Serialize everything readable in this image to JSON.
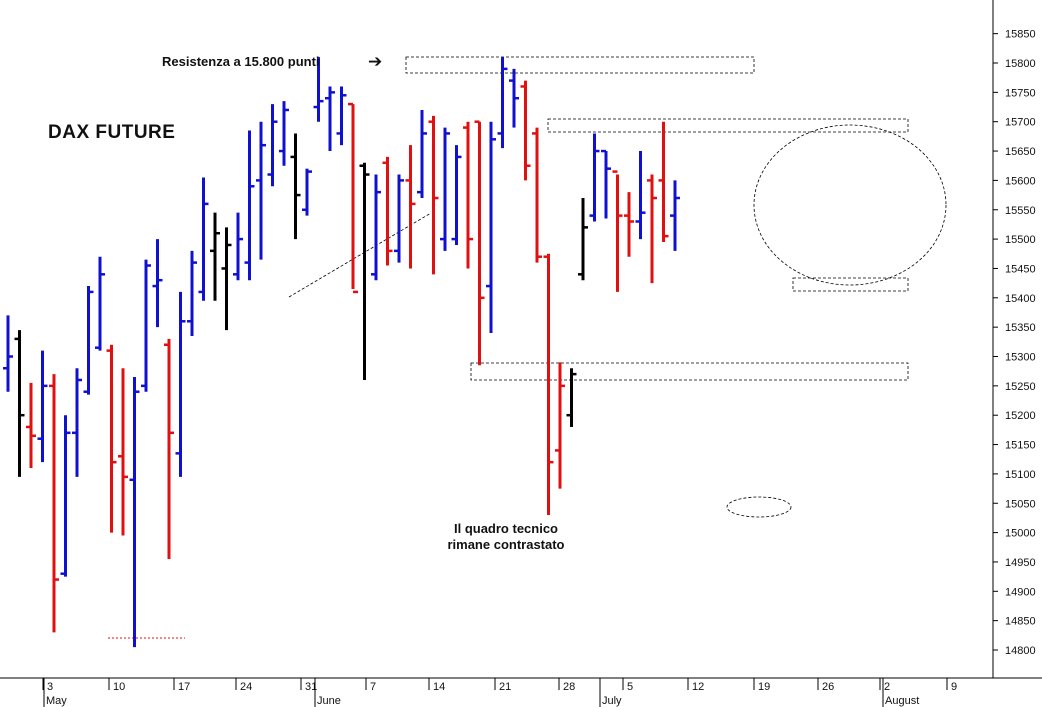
{
  "chart_data": {
    "type": "ohlc",
    "title": "DAX FUTURE",
    "annotations": {
      "resistance": "Resistenza a 15.800 punti",
      "resistance_arrow": "arrow-right",
      "comment_line1": "Il quadro tecnico",
      "comment_line2": "rimane contrastato"
    },
    "y_axis": {
      "position": "right",
      "range": [
        14750,
        15900
      ],
      "ticks": [
        14800,
        14850,
        14900,
        14950,
        15000,
        15050,
        15100,
        15150,
        15200,
        15250,
        15300,
        15350,
        15400,
        15450,
        15500,
        15550,
        15600,
        15650,
        15700,
        15750,
        15800,
        15850
      ]
    },
    "x_axis": {
      "day_ticks": [
        "3",
        "10",
        "17",
        "24",
        "31",
        "7",
        "14",
        "21",
        "28",
        "5",
        "12",
        "19",
        "26",
        "2",
        "9"
      ],
      "months": [
        "May",
        "June",
        "July",
        "August"
      ]
    },
    "colors": {
      "up": "#1010d0",
      "down": "#e01010",
      "neutral": "#000000",
      "guide": "#000000"
    },
    "bar_colors_legend": {
      "b": "up",
      "r": "down",
      "k": "neutral"
    },
    "bars": [
      {
        "c": "b",
        "h": 15370,
        "l": 15240,
        "o": 15280,
        "cl": 15300
      },
      {
        "c": "k",
        "h": 15345,
        "l": 15095,
        "o": 15330,
        "cl": 15200
      },
      {
        "c": "r",
        "h": 15255,
        "l": 15110,
        "o": 15180,
        "cl": 15165
      },
      {
        "c": "b",
        "h": 15310,
        "l": 15120,
        "o": 15160,
        "cl": 15250
      },
      {
        "c": "r",
        "h": 15270,
        "l": 14830,
        "o": 15250,
        "cl": 14920
      },
      {
        "c": "b",
        "h": 15200,
        "l": 14925,
        "o": 14930,
        "cl": 15170
      },
      {
        "c": "b",
        "h": 15280,
        "l": 15095,
        "o": 15170,
        "cl": 15260
      },
      {
        "c": "b",
        "h": 15420,
        "l": 15235,
        "o": 15240,
        "cl": 15410
      },
      {
        "c": "b",
        "h": 15470,
        "l": 15310,
        "o": 15315,
        "cl": 15440
      },
      {
        "c": "r",
        "h": 15320,
        "l": 15000,
        "o": 15310,
        "cl": 15120
      },
      {
        "c": "r",
        "h": 15280,
        "l": 14995,
        "o": 15130,
        "cl": 15095
      },
      {
        "c": "b",
        "h": 15265,
        "l": 14805,
        "o": 15090,
        "cl": 15240
      },
      {
        "c": "b",
        "h": 15465,
        "l": 15240,
        "o": 15250,
        "cl": 15455
      },
      {
        "c": "b",
        "h": 15500,
        "l": 15350,
        "o": 15420,
        "cl": 15430
      },
      {
        "c": "r",
        "h": 15330,
        "l": 14955,
        "o": 15320,
        "cl": 15170
      },
      {
        "c": "b",
        "h": 15410,
        "l": 15095,
        "o": 15135,
        "cl": 15360
      },
      {
        "c": "b",
        "h": 15480,
        "l": 15335,
        "o": 15360,
        "cl": 15460
      },
      {
        "c": "b",
        "h": 15605,
        "l": 15395,
        "o": 15410,
        "cl": 15560
      },
      {
        "c": "k",
        "h": 15545,
        "l": 15395,
        "o": 15480,
        "cl": 15510
      },
      {
        "c": "k",
        "h": 15520,
        "l": 15345,
        "o": 15450,
        "cl": 15490
      },
      {
        "c": "b",
        "h": 15545,
        "l": 15430,
        "o": 15440,
        "cl": 15500
      },
      {
        "c": "b",
        "h": 15685,
        "l": 15430,
        "o": 15460,
        "cl": 15590
      },
      {
        "c": "b",
        "h": 15700,
        "l": 15465,
        "o": 15600,
        "cl": 15660
      },
      {
        "c": "b",
        "h": 15730,
        "l": 15590,
        "o": 15610,
        "cl": 15700
      },
      {
        "c": "b",
        "h": 15735,
        "l": 15625,
        "o": 15650,
        "cl": 15720
      },
      {
        "c": "k",
        "h": 15680,
        "l": 15500,
        "o": 15640,
        "cl": 15575
      },
      {
        "c": "b",
        "h": 15620,
        "l": 15540,
        "o": 15550,
        "cl": 15615
      },
      {
        "c": "b",
        "h": 15810,
        "l": 15700,
        "o": 15725,
        "cl": 15735
      },
      {
        "c": "b",
        "h": 15760,
        "l": 15650,
        "o": 15740,
        "cl": 15750
      },
      {
        "c": "b",
        "h": 15760,
        "l": 15660,
        "o": 15680,
        "cl": 15745
      },
      {
        "c": "r",
        "h": 15730,
        "l": 15415,
        "o": 15730,
        "cl": 15410
      },
      {
        "c": "k",
        "h": 15630,
        "l": 15260,
        "o": 15625,
        "cl": 15610
      },
      {
        "c": "b",
        "h": 15610,
        "l": 15430,
        "o": 15440,
        "cl": 15580
      },
      {
        "c": "r",
        "h": 15640,
        "l": 15455,
        "o": 15630,
        "cl": 15480
      },
      {
        "c": "b",
        "h": 15610,
        "l": 15460,
        "o": 15480,
        "cl": 15600
      },
      {
        "c": "r",
        "h": 15660,
        "l": 15450,
        "o": 15600,
        "cl": 15560
      },
      {
        "c": "b",
        "h": 15720,
        "l": 15570,
        "o": 15580,
        "cl": 15680
      },
      {
        "c": "r",
        "h": 15710,
        "l": 15440,
        "o": 15700,
        "cl": 15570
      },
      {
        "c": "b",
        "h": 15690,
        "l": 15480,
        "o": 15500,
        "cl": 15680
      },
      {
        "c": "b",
        "h": 15660,
        "l": 15490,
        "o": 15500,
        "cl": 15640
      },
      {
        "c": "r",
        "h": 15700,
        "l": 15450,
        "o": 15690,
        "cl": 15500
      },
      {
        "c": "r",
        "h": 15700,
        "l": 15285,
        "o": 15700,
        "cl": 15400
      },
      {
        "c": "b",
        "h": 15700,
        "l": 15340,
        "o": 15420,
        "cl": 15670
      },
      {
        "c": "b",
        "h": 15810,
        "l": 15655,
        "o": 15680,
        "cl": 15790
      },
      {
        "c": "b",
        "h": 15790,
        "l": 15690,
        "o": 15770,
        "cl": 15740
      },
      {
        "c": "r",
        "h": 15770,
        "l": 15600,
        "o": 15760,
        "cl": 15625
      },
      {
        "c": "r",
        "h": 15690,
        "l": 15460,
        "o": 15680,
        "cl": 15470
      },
      {
        "c": "r",
        "h": 15475,
        "l": 15030,
        "o": 15470,
        "cl": 15120
      },
      {
        "c": "r",
        "h": 15290,
        "l": 15075,
        "o": 15140,
        "cl": 15250
      },
      {
        "c": "k",
        "h": 15280,
        "l": 15180,
        "o": 15200,
        "cl": 15270
      },
      {
        "c": "k",
        "h": 15570,
        "l": 15430,
        "o": 15440,
        "cl": 15520
      },
      {
        "c": "b",
        "h": 15680,
        "l": 15530,
        "o": 15540,
        "cl": 15650
      },
      {
        "c": "b",
        "h": 15650,
        "l": 15535,
        "o": 15650,
        "cl": 15620
      },
      {
        "c": "r",
        "h": 15610,
        "l": 15410,
        "o": 15615,
        "cl": 15540
      },
      {
        "c": "r",
        "h": 15580,
        "l": 15470,
        "o": 15540,
        "cl": 15530
      },
      {
        "c": "b",
        "h": 15650,
        "l": 15500,
        "o": 15530,
        "cl": 15545
      },
      {
        "c": "r",
        "h": 15610,
        "l": 15425,
        "o": 15600,
        "cl": 15570
      },
      {
        "c": "r",
        "h": 15700,
        "l": 15495,
        "o": 15600,
        "cl": 15505
      },
      {
        "c": "b",
        "h": 15600,
        "l": 15480,
        "o": 15540,
        "cl": 15570
      }
    ]
  }
}
